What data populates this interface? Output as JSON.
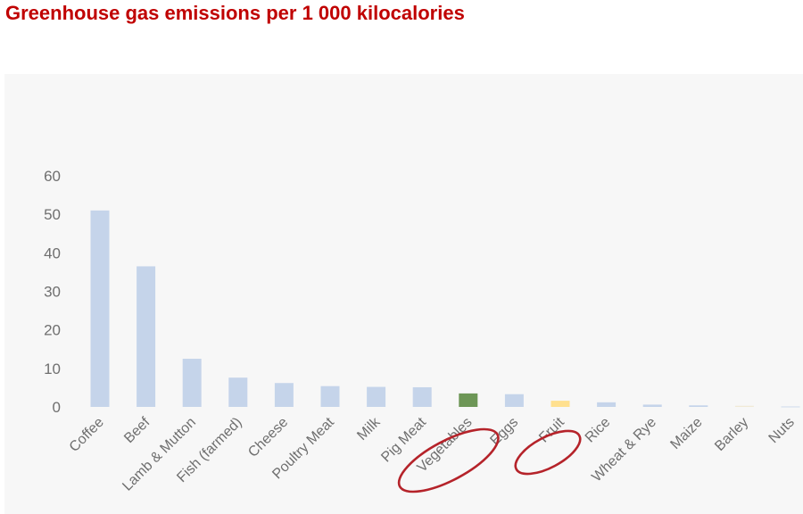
{
  "page": {
    "title": "Greenhouse gas emissions per 1 000 kilocalories"
  },
  "chart_data": {
    "type": "bar",
    "title": "Greenhouse gas emissions per 1 000 kilocalories",
    "xlabel": "",
    "ylabel": "",
    "categories": [
      "Coffee",
      "Beef",
      "Lamb & Mutton",
      "Fish (farmed)",
      "Cheese",
      "Poultry Meat",
      "Milk",
      "Pig Meat",
      "Vegetables",
      "Eggs",
      "Fruit",
      "Rice",
      "Wheat & Rye",
      "Maize",
      "Barley",
      "Nuts"
    ],
    "values": [
      51,
      36.5,
      12.5,
      7.6,
      6.2,
      5.4,
      5.2,
      5.1,
      3.5,
      3.3,
      1.6,
      1.2,
      0.6,
      0.4,
      0.3,
      0.1
    ],
    "ylim": [
      0,
      60
    ],
    "yticks": [
      0,
      10,
      20,
      30,
      40,
      50,
      60
    ],
    "grid": false,
    "legend": "none",
    "colors": {
      "default": "#c5d4ea",
      "highlight_green": "#6d9656",
      "highlight_yellow": "#ffe08f",
      "circle": "#b5232a",
      "text": "#6f6f6f"
    },
    "bar_colors": [
      "#c5d4ea",
      "#c5d4ea",
      "#c5d4ea",
      "#c5d4ea",
      "#c5d4ea",
      "#c5d4ea",
      "#c5d4ea",
      "#c5d4ea",
      "#6d9656",
      "#c5d4ea",
      "#ffe08f",
      "#c5d4ea",
      "#c5d4ea",
      "#c5d4ea",
      "#f0ead6",
      "#c5d4ea"
    ],
    "annotations": [
      {
        "type": "hand-drawn-circle",
        "target": "Vegetables",
        "color": "#b5232a"
      },
      {
        "type": "hand-drawn-circle",
        "target": "Fruit",
        "color": "#b5232a"
      }
    ]
  }
}
